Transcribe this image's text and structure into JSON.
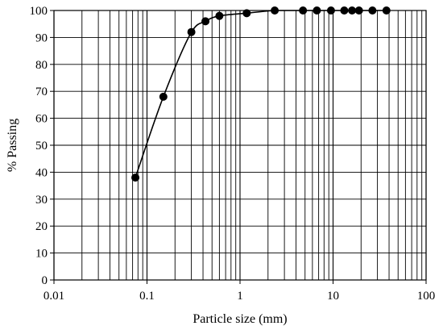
{
  "chart_data": {
    "type": "scatter",
    "title": "",
    "xlabel": "Particle size (mm)",
    "ylabel": "% Passing",
    "x_scale": "log",
    "xlim": [
      0.01,
      100
    ],
    "ylim": [
      0,
      100
    ],
    "x_ticks": [
      "0.01",
      "0.1",
      "1",
      "10",
      "100"
    ],
    "y_ticks": [
      "0",
      "10",
      "20",
      "30",
      "40",
      "50",
      "60",
      "70",
      "80",
      "90",
      "100"
    ],
    "grid": true,
    "legend": "none",
    "series": [
      {
        "x": [
          0.075,
          0.15,
          0.3,
          0.425,
          0.6,
          1.18,
          2.36,
          4.75,
          6.7,
          9.5,
          13.2,
          16,
          19,
          26.5,
          37.5
        ],
        "y": [
          38,
          68,
          92,
          96,
          98,
          99,
          100,
          100,
          100,
          100,
          100,
          100,
          100,
          100,
          100
        ],
        "marker": "circle",
        "line": "smooth",
        "color": "#000000"
      }
    ]
  }
}
